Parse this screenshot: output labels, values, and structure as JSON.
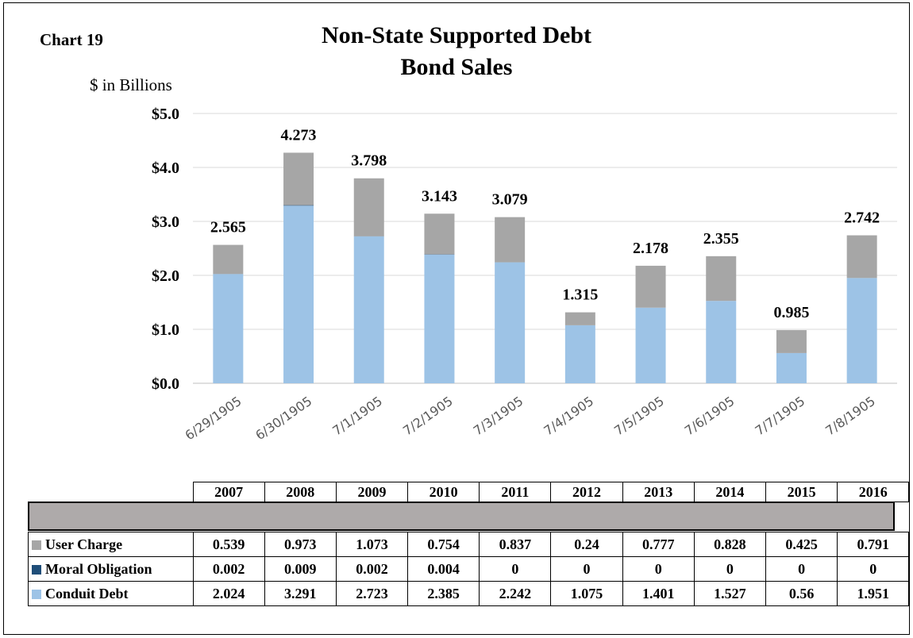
{
  "chart_label": "Chart 19",
  "title_line1": "Non-State Supported Debt",
  "title_line2": "Bond Sales",
  "colors": {
    "user_charge": "#a6a6a6",
    "moral_obligation": "#1f4e79",
    "conduit_debt": "#9dc3e6",
    "gridline": "#d9d9d9",
    "band": "#aeaaaa"
  },
  "chart_data": {
    "type": "bar",
    "stacked": true,
    "ylabel": "$ in Billions",
    "ylim": [
      0,
      5
    ],
    "y_ticks": [
      "$0.0",
      "$1.0",
      "$2.0",
      "$3.0",
      "$4.0",
      "$5.0"
    ],
    "y_tick_values": [
      0,
      1,
      2,
      3,
      4,
      5
    ],
    "categories": [
      "6/29/1905",
      "6/30/1905",
      "7/1/1905",
      "7/2/1905",
      "7/3/1905",
      "7/4/1905",
      "7/5/1905",
      "7/6/1905",
      "7/7/1905",
      "7/8/1905"
    ],
    "totals": [
      "2.565",
      "4.273",
      "3.798",
      "3.143",
      "3.079",
      "1.315",
      "2.178",
      "2.355",
      "0.985",
      "2.742"
    ],
    "total_values": [
      2.565,
      4.273,
      3.798,
      3.143,
      3.079,
      1.315,
      2.178,
      2.355,
      0.985,
      2.742
    ],
    "series": [
      {
        "name": "Conduit Debt",
        "color": "#9dc3e6",
        "values": [
          2.024,
          3.291,
          2.723,
          2.385,
          2.242,
          1.075,
          1.401,
          1.527,
          0.56,
          1.951
        ]
      },
      {
        "name": "Moral Obligation",
        "color": "#1f4e79",
        "values": [
          0.002,
          0.009,
          0.002,
          0.004,
          0,
          0,
          0,
          0,
          0,
          0
        ]
      },
      {
        "name": "User Charge",
        "color": "#a6a6a6",
        "values": [
          0.539,
          0.973,
          1.073,
          0.754,
          0.837,
          0.24,
          0.777,
          0.828,
          0.425,
          0.791
        ]
      }
    ],
    "grid": true
  },
  "table": {
    "years": [
      "2007",
      "2008",
      "2009",
      "2010",
      "2011",
      "2012",
      "2013",
      "2014",
      "2015",
      "2016"
    ],
    "rows": [
      {
        "label": "User Charge",
        "color": "#a6a6a6",
        "cells": [
          "0.539",
          "0.973",
          "1.073",
          "0.754",
          "0.837",
          "0.24",
          "0.777",
          "0.828",
          "0.425",
          "0.791"
        ]
      },
      {
        "label": "Moral Obligation",
        "color": "#1f4e79",
        "cells": [
          "0.002",
          "0.009",
          "0.002",
          "0.004",
          "0",
          "0",
          "0",
          "0",
          "0",
          "0"
        ]
      },
      {
        "label": "Conduit Debt",
        "color": "#9dc3e6",
        "cells": [
          "2.024",
          "3.291",
          "2.723",
          "2.385",
          "2.242",
          "1.075",
          "1.401",
          "1.527",
          "0.56",
          "1.951"
        ]
      }
    ]
  }
}
